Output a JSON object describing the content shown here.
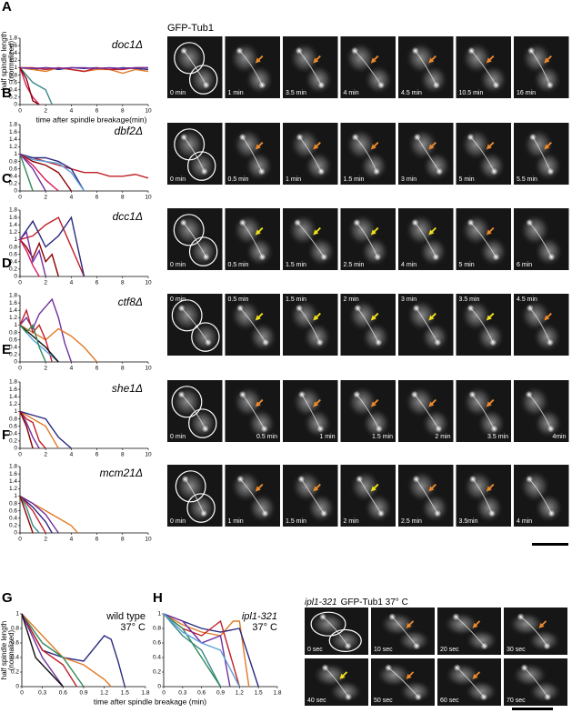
{
  "panels": [
    {
      "label": "A",
      "image_title": "GFP-Tub1",
      "frames": [
        "0 min",
        "1 min",
        "3.5 min",
        "4 min",
        "4.5 min",
        "10.5 min",
        "16 min"
      ]
    },
    {
      "label": "B",
      "frames": [
        "0 min",
        "0.5 min",
        "1 min",
        "1.5 min",
        "3 min",
        "5 min",
        "5.5 min"
      ]
    },
    {
      "label": "C",
      "frames": [
        "0 min",
        "0.5 min",
        "1.5 min",
        "2.5 min",
        "4 min",
        "5 min",
        "6 min"
      ]
    },
    {
      "label": "D",
      "frames": [
        "0 min",
        "0.5 min",
        "1.5 min",
        "2 min",
        "3 min",
        "3.5 min",
        "4.5 min"
      ]
    },
    {
      "label": "E",
      "frames": [
        "0 min",
        "0.5 min",
        "1 min",
        "1.5 min",
        "2 min",
        "3.5 min",
        "4min"
      ]
    },
    {
      "label": "F",
      "frames": [
        "0 min",
        "1 min",
        "1.5 min",
        "2 min",
        "2.5 min",
        "3.5min",
        "4 min"
      ]
    },
    {
      "label": "G"
    },
    {
      "label": "H",
      "image_title": [
        "ipl1-321",
        "GFP-Tub1  37° C"
      ],
      "frames": [
        "0 sec",
        "10 sec",
        "20 sec",
        "30 sec",
        "40 sec",
        "50 sec",
        "60 sec",
        "70 sec"
      ]
    }
  ],
  "chart_data": [
    {
      "type": "line",
      "annotation": [
        "doc1Δ"
      ],
      "ylabel": [
        "half spindle length",
        "(normalized)"
      ],
      "xlabel": "time after spindle breakage(min)",
      "xlim": [
        0,
        10
      ],
      "ylim": [
        0,
        1.8
      ],
      "xticks": [
        0,
        2,
        4,
        6,
        8,
        10
      ],
      "yticks": [
        0,
        0.2,
        0.4,
        0.6,
        0.8,
        1,
        1.2,
        1.4,
        1.6,
        1.8
      ],
      "series": [
        {
          "color": "#2a2a80",
          "x": [
            0,
            1,
            2,
            3,
            4,
            5,
            6,
            7,
            8,
            9,
            10
          ],
          "values": [
            1,
            0.95,
            1,
            0.95,
            1,
            0.98,
            1,
            0.95,
            1,
            0.98,
            0.95
          ]
        },
        {
          "color": "#e07b28",
          "x": [
            0,
            1,
            2,
            3,
            4,
            5,
            6,
            7,
            8,
            9,
            10
          ],
          "values": [
            1,
            0.95,
            0.9,
            1,
            0.95,
            0.9,
            0.95,
            0.95,
            0.85,
            0.95,
            0.9
          ]
        },
        {
          "color": "#c0202a",
          "x": [
            0,
            1,
            2,
            3,
            4,
            5,
            6,
            7,
            8,
            9,
            10
          ],
          "values": [
            1,
            1,
            0.95,
            1,
            0.95,
            0.9,
            1,
            0.95,
            0.95,
            1,
            1
          ]
        },
        {
          "color": "#7030a0",
          "x": [
            0,
            1,
            2,
            3,
            4,
            5,
            6,
            7,
            8,
            9,
            10
          ],
          "values": [
            1,
            0.98,
            1,
            0.98,
            1,
            1,
            0.98,
            1,
            0.98,
            1,
            1
          ]
        },
        {
          "color": "#3a8a8a",
          "x": [
            0,
            1,
            2,
            2.5
          ],
          "values": [
            1,
            0.6,
            0.4,
            0
          ]
        },
        {
          "color": "#d81b60",
          "x": [
            0,
            0.5,
            1,
            1.5
          ],
          "values": [
            1,
            0.5,
            0.2,
            0
          ]
        },
        {
          "color": "#8b0000",
          "x": [
            0,
            0.5,
            1,
            1.5
          ],
          "values": [
            1,
            0.7,
            0.1,
            0
          ]
        }
      ]
    },
    {
      "type": "line",
      "annotation": [
        "dbf2Δ"
      ],
      "xlim": [
        0,
        10
      ],
      "ylim": [
        0,
        1.8
      ],
      "xticks": [
        0,
        2,
        4,
        6,
        8,
        10
      ],
      "yticks": [
        0,
        0.2,
        0.4,
        0.6,
        0.8,
        1,
        1.2,
        1.4,
        1.6,
        1.8
      ],
      "series": [
        {
          "color": "#c0202a",
          "x": [
            0,
            1,
            2,
            3,
            4,
            5,
            6,
            7,
            8,
            9,
            10
          ],
          "values": [
            1,
            0.9,
            0.8,
            0.7,
            0.6,
            0.5,
            0.5,
            0.4,
            0.4,
            0.45,
            0.35
          ]
        },
        {
          "color": "#2a2a80",
          "x": [
            0,
            1,
            2,
            3,
            4,
            5
          ],
          "values": [
            1,
            0.9,
            0.9,
            0.8,
            0.6,
            0
          ]
        },
        {
          "color": "#5aa0d8",
          "x": [
            0,
            1,
            2,
            3,
            4,
            5
          ],
          "values": [
            1,
            0.85,
            0.8,
            0.75,
            0.5,
            0
          ]
        },
        {
          "color": "#8b0000",
          "x": [
            0,
            1,
            2,
            3,
            4
          ],
          "values": [
            1,
            0.8,
            0.7,
            0.5,
            0
          ]
        },
        {
          "color": "#d81b60",
          "x": [
            0,
            1,
            2,
            3
          ],
          "values": [
            1,
            0.7,
            0.3,
            0
          ]
        },
        {
          "color": "#2e8b57",
          "x": [
            0,
            0.5,
            1
          ],
          "values": [
            1,
            0.5,
            0
          ]
        },
        {
          "color": "#7030a0",
          "x": [
            0,
            1,
            2
          ],
          "values": [
            1,
            0.6,
            0
          ]
        }
      ]
    },
    {
      "type": "line",
      "annotation": [
        "dcc1Δ"
      ],
      "xlim": [
        0,
        10
      ],
      "ylim": [
        0,
        1.8
      ],
      "xticks": [
        0,
        2,
        4,
        6,
        8,
        10
      ],
      "yticks": [
        0,
        0.2,
        0.4,
        0.6,
        0.8,
        1,
        1.2,
        1.4,
        1.6,
        1.8
      ],
      "series": [
        {
          "color": "#c0202a",
          "x": [
            0,
            1,
            2,
            3,
            4,
            5
          ],
          "values": [
            1,
            1.1,
            1.4,
            1.6,
            0.8,
            0
          ]
        },
        {
          "color": "#2a2a80",
          "x": [
            0,
            1,
            2,
            3,
            4,
            5
          ],
          "values": [
            1,
            1.5,
            0.8,
            1.1,
            1.6,
            0
          ]
        },
        {
          "color": "#8b0000",
          "x": [
            0,
            0.5,
            1,
            1.5,
            2,
            2.5,
            3
          ],
          "values": [
            1,
            0.8,
            0.5,
            0.9,
            0.4,
            0.6,
            0
          ]
        },
        {
          "color": "#7030a0",
          "x": [
            0,
            0.5,
            1,
            1.5,
            2
          ],
          "values": [
            1,
            1.2,
            0.4,
            0.7,
            0
          ]
        },
        {
          "color": "#d81b60",
          "x": [
            0,
            0.5,
            1,
            1.5
          ],
          "values": [
            1,
            0.7,
            0.3,
            0
          ]
        }
      ]
    },
    {
      "type": "line",
      "annotation": [
        "ctf8Δ"
      ],
      "xlim": [
        0,
        10
      ],
      "ylim": [
        0,
        1.8
      ],
      "xticks": [
        0,
        2,
        4,
        6,
        8,
        10
      ],
      "yticks": [
        0,
        0.2,
        0.4,
        0.6,
        0.8,
        1,
        1.2,
        1.4,
        1.6,
        1.8
      ],
      "series": [
        {
          "color": "#7030a0",
          "x": [
            0,
            0.5,
            1,
            1.5,
            2,
            2.5,
            3,
            3.5,
            4
          ],
          "values": [
            1,
            1.2,
            0.9,
            1.3,
            1.5,
            1.7,
            1.2,
            0.5,
            0
          ]
        },
        {
          "color": "#e07b28",
          "x": [
            0,
            1,
            2,
            3,
            4,
            5,
            6
          ],
          "values": [
            1,
            0.8,
            0.6,
            0.9,
            0.7,
            0.4,
            0
          ]
        },
        {
          "color": "#c0202a",
          "x": [
            0,
            0.5,
            1,
            1.5,
            2,
            2.5
          ],
          "values": [
            1,
            1.4,
            0.8,
            1,
            0.6,
            0
          ]
        },
        {
          "color": "#5aa0d8",
          "x": [
            0,
            1,
            2,
            3
          ],
          "values": [
            1,
            0.6,
            0.3,
            0
          ]
        },
        {
          "color": "#111111",
          "x": [
            0,
            1,
            2,
            3
          ],
          "values": [
            1,
            0.7,
            0.4,
            0
          ]
        },
        {
          "color": "#2e8b57",
          "x": [
            0,
            0.5,
            1,
            1.5,
            2
          ],
          "values": [
            1,
            0.8,
            1,
            0.4,
            0
          ]
        }
      ]
    },
    {
      "type": "line",
      "annotation": [
        "she1Δ"
      ],
      "xlim": [
        0,
        10
      ],
      "ylim": [
        0,
        1.8
      ],
      "xticks": [
        0,
        2,
        4,
        6,
        8,
        10
      ],
      "yticks": [
        0,
        0.2,
        0.4,
        0.6,
        0.8,
        1,
        1.2,
        1.4,
        1.6,
        1.8
      ],
      "series": [
        {
          "color": "#e07b28",
          "x": [
            0,
            0.5,
            1,
            1.5,
            2,
            2.5,
            3
          ],
          "values": [
            1,
            0.9,
            0.8,
            0.7,
            0.6,
            0.3,
            0
          ]
        },
        {
          "color": "#2a2a80",
          "x": [
            0,
            1,
            2,
            3,
            4
          ],
          "values": [
            1,
            0.9,
            0.8,
            0.3,
            0
          ]
        },
        {
          "color": "#c0202a",
          "x": [
            0,
            0.5,
            1,
            1.5,
            2
          ],
          "values": [
            1,
            0.8,
            0.7,
            0.2,
            0
          ]
        },
        {
          "color": "#7030a0",
          "x": [
            0,
            0.5,
            1,
            1.5
          ],
          "values": [
            1,
            0.7,
            0.3,
            0
          ]
        },
        {
          "color": "#8b0000",
          "x": [
            0,
            0.5,
            1
          ],
          "values": [
            1,
            0.6,
            0
          ]
        }
      ]
    },
    {
      "type": "line",
      "annotation": [
        "mcm21Δ"
      ],
      "xlim": [
        0,
        10
      ],
      "ylim": [
        0,
        1.8
      ],
      "xticks": [
        0,
        2,
        4,
        6,
        8,
        10
      ],
      "yticks": [
        0,
        0.2,
        0.4,
        0.6,
        0.8,
        1,
        1.2,
        1.4,
        1.6,
        1.8
      ],
      "series": [
        {
          "color": "#e07b28",
          "x": [
            0,
            1,
            2,
            3,
            4,
            4.5
          ],
          "values": [
            1,
            0.8,
            0.6,
            0.4,
            0.2,
            0
          ]
        },
        {
          "color": "#7030a0",
          "x": [
            0,
            1,
            2,
            3
          ],
          "values": [
            1,
            0.8,
            0.5,
            0
          ]
        },
        {
          "color": "#2a2a80",
          "x": [
            0,
            1,
            2,
            2.5
          ],
          "values": [
            1,
            0.7,
            0.3,
            0
          ]
        },
        {
          "color": "#c0202a",
          "x": [
            0,
            0.5,
            1,
            1.5,
            2
          ],
          "values": [
            1,
            0.8,
            0.6,
            0.3,
            0
          ]
        },
        {
          "color": "#3a8a8a",
          "x": [
            0,
            0.5,
            1,
            1.5
          ],
          "values": [
            1,
            0.7,
            0.2,
            0
          ]
        },
        {
          "color": "#8b0000",
          "x": [
            0,
            0.5,
            1
          ],
          "values": [
            1,
            0.5,
            0
          ]
        }
      ]
    },
    {
      "type": "line",
      "annotation": [
        "wild type",
        "37° C"
      ],
      "ylabel": [
        "half spindle length",
        "(normalized)"
      ],
      "xlabel": "time after spindle breakage (min)",
      "xlim": [
        0,
        1.8
      ],
      "ylim": [
        0,
        1
      ],
      "xticks": [
        0,
        0.3,
        0.6,
        0.9,
        1.2,
        1.5,
        1.8
      ],
      "yticks": [
        0,
        0.2,
        0.4,
        0.6,
        0.8,
        1
      ],
      "series": [
        {
          "color": "#2a2a80",
          "x": [
            0,
            0.3,
            0.6,
            0.9,
            1.2,
            1.3,
            1.4,
            1.5
          ],
          "values": [
            1,
            0.5,
            0.4,
            0.35,
            0.7,
            0.65,
            0.35,
            0
          ]
        },
        {
          "color": "#e07b28",
          "x": [
            0,
            0.3,
            0.6,
            0.9,
            1.2,
            1.3
          ],
          "values": [
            1,
            0.7,
            0.4,
            0.3,
            0.1,
            0
          ]
        },
        {
          "color": "#2e8b57",
          "x": [
            0,
            0.3,
            0.6,
            0.9
          ],
          "values": [
            1,
            0.6,
            0.4,
            0
          ]
        },
        {
          "color": "#c0202a",
          "x": [
            0,
            0.3,
            0.6,
            0.8
          ],
          "values": [
            1,
            0.5,
            0.3,
            0
          ]
        },
        {
          "color": "#7030a0",
          "x": [
            0,
            0.3,
            0.6
          ],
          "values": [
            1,
            0.4,
            0
          ]
        },
        {
          "color": "#111111",
          "x": [
            0,
            0.2,
            0.4,
            0.6
          ],
          "values": [
            1,
            0.4,
            0.2,
            0
          ]
        }
      ]
    },
    {
      "type": "line",
      "annotation": [
        "ipl1-321",
        "37° C"
      ],
      "xlim": [
        0,
        1.8
      ],
      "ylim": [
        0,
        1
      ],
      "xticks": [
        0,
        0.3,
        0.6,
        0.9,
        1.2,
        1.5,
        1.8
      ],
      "yticks": [
        0,
        0.2,
        0.4,
        0.6,
        0.8,
        1
      ],
      "series": [
        {
          "color": "#e07b28",
          "x": [
            0,
            0.3,
            0.6,
            0.9,
            1.1,
            1.2,
            1.35
          ],
          "values": [
            1,
            0.85,
            0.75,
            0.7,
            0.9,
            0.9,
            0
          ]
        },
        {
          "color": "#2a2a80",
          "x": [
            0,
            0.3,
            0.6,
            0.9,
            1.2,
            1.5
          ],
          "values": [
            1,
            0.9,
            0.8,
            0.75,
            0.8,
            0
          ]
        },
        {
          "color": "#c0202a",
          "x": [
            0,
            0.3,
            0.6,
            0.9,
            1.2
          ],
          "values": [
            1,
            0.8,
            0.7,
            0.9,
            0
          ]
        },
        {
          "color": "#7030a0",
          "x": [
            0,
            0.3,
            0.6,
            0.9,
            1.05
          ],
          "values": [
            1,
            0.9,
            0.6,
            0.7,
            0
          ]
        },
        {
          "color": "#3a8a8a",
          "x": [
            0,
            0.3,
            0.6,
            0.9
          ],
          "values": [
            1,
            0.7,
            0.5,
            0
          ]
        },
        {
          "color": "#2e8b57",
          "x": [
            0,
            0.3,
            0.6,
            0.9
          ],
          "values": [
            1,
            0.8,
            0.4,
            0
          ]
        },
        {
          "color": "#5aa0d8",
          "x": [
            0,
            0.3,
            0.6,
            0.9,
            1.2
          ],
          "values": [
            1,
            0.75,
            0.6,
            0.5,
            0
          ]
        }
      ]
    }
  ]
}
